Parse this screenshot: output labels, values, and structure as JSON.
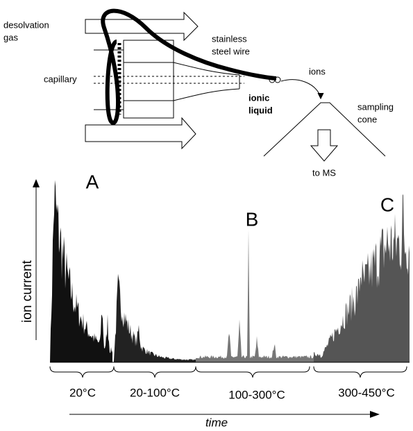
{
  "diagram": {
    "labels": {
      "desolvation_gas": [
        "desolvation",
        "gas"
      ],
      "stainless_steel_wire": [
        "stainless",
        "steel wire"
      ],
      "capillary": "capillary",
      "ionic_liquid": [
        "ionic",
        "liquid"
      ],
      "ions": "ions",
      "sampling_cone": [
        "sampling",
        "cone"
      ],
      "to_ms": "to MS"
    },
    "trace": {
      "peak_labels": [
        "A",
        "B",
        "C"
      ],
      "y_axis_label": "ion current",
      "x_axis_label": "time",
      "segments": [
        "20°C",
        "20-100°C",
        "100-300°C",
        "300-450°C"
      ]
    }
  }
}
